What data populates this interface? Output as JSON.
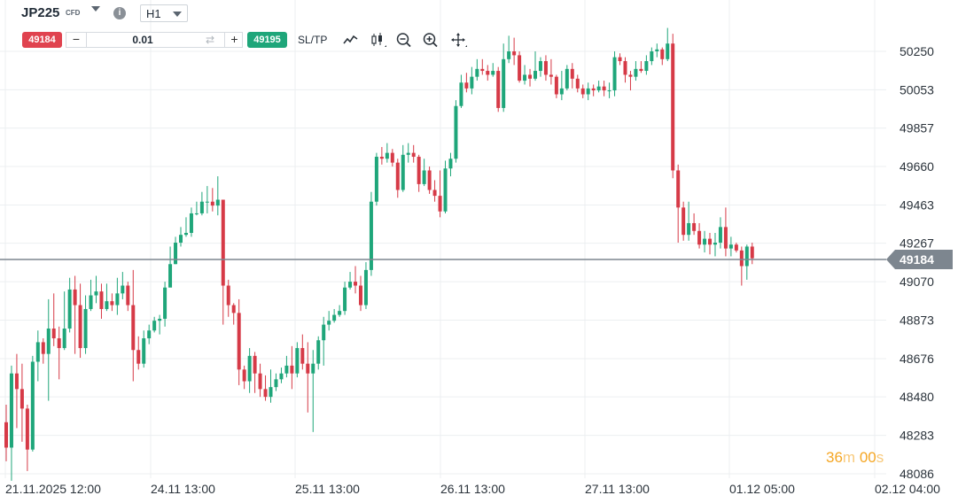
{
  "header": {
    "symbol": "JP225",
    "symbol_type": "CFD",
    "info_icon": "info-icon",
    "timeframe": "H1"
  },
  "trade_bar": {
    "sell_price": "49184",
    "lot_value": "0.01",
    "minus_label": "−",
    "plus_label": "+",
    "swap_icon": "swap-icon",
    "buy_price": "49195",
    "sltp_label": "SL/TP",
    "tools": [
      "line-chart-icon",
      "candlestick-icon",
      "zoom-out-icon",
      "zoom-in-icon",
      "move-icon"
    ]
  },
  "colors": {
    "up": "#1fa67a",
    "down": "#d63a47",
    "current_line": "#7d868f",
    "grid": "#eceff1"
  },
  "chart_data": {
    "type": "candlestick",
    "y_ticks": [
      50250,
      50053,
      49857,
      49660,
      49463,
      49267,
      49070,
      48873,
      48676,
      48480,
      48283,
      48086
    ],
    "x_ticks": [
      "21.11.2025 12:00",
      "24.11 13:00",
      "25.11 13:00",
      "26.11 13:00",
      "27.11 13:00",
      "01.12 05:00",
      "02.12 04:00"
    ],
    "current_price": "49184",
    "candles": [
      [
        48350,
        48220,
        48440,
        48150
      ],
      [
        48220,
        48600,
        48640,
        48050
      ],
      [
        48600,
        48520,
        48700,
        48320
      ],
      [
        48520,
        48420,
        48650,
        48250
      ],
      [
        48420,
        48210,
        48440,
        48100
      ],
      [
        48210,
        48660,
        48690,
        48200
      ],
      [
        48660,
        48760,
        48820,
        48560
      ],
      [
        48760,
        48700,
        48780,
        48650
      ],
      [
        48700,
        48830,
        48980,
        48460
      ],
      [
        48830,
        48780,
        49010,
        48740
      ],
      [
        48780,
        48730,
        48840,
        48570
      ],
      [
        48730,
        48830,
        49020,
        48720
      ],
      [
        48830,
        49030,
        49090,
        48810
      ],
      [
        49030,
        48950,
        49100,
        48700
      ],
      [
        48950,
        48730,
        49060,
        48680
      ],
      [
        48730,
        48930,
        49000,
        48700
      ],
      [
        48930,
        49000,
        49080,
        48920
      ],
      [
        49000,
        49020,
        49100,
        48960
      ],
      [
        49020,
        48930,
        49060,
        48880
      ],
      [
        48930,
        48970,
        49060,
        48920
      ],
      [
        48970,
        48950,
        49010,
        48920
      ],
      [
        48950,
        49010,
        49090,
        48900
      ],
      [
        49010,
        49050,
        49120,
        48980
      ],
      [
        49050,
        48950,
        49070,
        48920
      ],
      [
        48950,
        48720,
        49130,
        48560
      ],
      [
        48720,
        48650,
        48790,
        48620
      ],
      [
        48650,
        48780,
        48820,
        48630
      ],
      [
        48780,
        48820,
        48850,
        48750
      ],
      [
        48820,
        48870,
        48890,
        48810
      ],
      [
        48870,
        48880,
        48900,
        48800
      ],
      [
        48880,
        49040,
        49070,
        48840
      ],
      [
        49040,
        49160,
        49250,
        49140
      ],
      [
        49160,
        49270,
        49300,
        49160
      ],
      [
        49270,
        49310,
        49350,
        49250
      ],
      [
        49310,
        49320,
        49400,
        49300
      ],
      [
        49320,
        49420,
        49450,
        49300
      ],
      [
        49420,
        49420,
        49480,
        49410
      ],
      [
        49420,
        49480,
        49530,
        49410
      ],
      [
        49480,
        49480,
        49560,
        49420
      ],
      [
        49480,
        49460,
        49550,
        49430
      ],
      [
        49460,
        49490,
        49610,
        49410
      ],
      [
        49490,
        49050,
        49130,
        48850
      ],
      [
        49050,
        48950,
        49080,
        48890
      ],
      [
        48950,
        48910,
        48960,
        48850
      ],
      [
        48910,
        48620,
        48980,
        48540
      ],
      [
        48620,
        48560,
        48640,
        48520
      ],
      [
        48560,
        48690,
        48730,
        48500
      ],
      [
        48690,
        48600,
        48710,
        48500
      ],
      [
        48600,
        48520,
        48650,
        48480
      ],
      [
        48520,
        48480,
        48590,
        48460
      ],
      [
        48480,
        48530,
        48620,
        48450
      ],
      [
        48530,
        48570,
        48600,
        48510
      ],
      [
        48570,
        48600,
        48630,
        48550
      ],
      [
        48600,
        48640,
        48690,
        48580
      ],
      [
        48640,
        48600,
        48740,
        48520
      ],
      [
        48600,
        48730,
        48760,
        48580
      ],
      [
        48730,
        48650,
        48800,
        48620
      ],
      [
        48650,
        48600,
        48760,
        48400
      ],
      [
        48600,
        48650,
        48720,
        48300
      ],
      [
        48650,
        48770,
        48790,
        48620
      ],
      [
        48770,
        48850,
        48890,
        48640
      ],
      [
        48850,
        48870,
        48920,
        48820
      ],
      [
        48870,
        48900,
        48930,
        48860
      ],
      [
        48900,
        48920,
        48950,
        48890
      ],
      [
        48920,
        49040,
        49070,
        48900
      ],
      [
        49040,
        49070,
        49120,
        49030
      ],
      [
        49070,
        49050,
        49150,
        49010
      ],
      [
        49050,
        48950,
        49100,
        48920
      ],
      [
        48950,
        49130,
        49170,
        48930
      ],
      [
        49130,
        49480,
        49530,
        49100
      ],
      [
        49480,
        49710,
        49730,
        49460
      ],
      [
        49710,
        49700,
        49760,
        49670
      ],
      [
        49700,
        49730,
        49780,
        49680
      ],
      [
        49730,
        49680,
        49750,
        49660
      ],
      [
        49680,
        49540,
        49700,
        49500
      ],
      [
        49540,
        49720,
        49770,
        49530
      ],
      [
        49720,
        49730,
        49780,
        49680
      ],
      [
        49730,
        49710,
        49770,
        49680
      ],
      [
        49710,
        49570,
        49720,
        49530
      ],
      [
        49570,
        49640,
        49700,
        49560
      ],
      [
        49640,
        49540,
        49660,
        49520
      ],
      [
        49540,
        49510,
        49590,
        49480
      ],
      [
        49510,
        49430,
        49640,
        49400
      ],
      [
        49430,
        49650,
        49690,
        49420
      ],
      [
        49650,
        49700,
        49730,
        49610
      ],
      [
        49700,
        49970,
        50000,
        49680
      ],
      [
        49970,
        50090,
        50130,
        49960
      ],
      [
        50090,
        50060,
        50140,
        50040
      ],
      [
        50060,
        50120,
        50170,
        50030
      ],
      [
        50120,
        50160,
        50210,
        50100
      ],
      [
        50160,
        50150,
        50210,
        50130
      ],
      [
        50150,
        50130,
        50180,
        50100
      ],
      [
        50130,
        50150,
        50190,
        50120
      ],
      [
        50150,
        49960,
        50170,
        49940
      ],
      [
        49960,
        50210,
        50290,
        49940
      ],
      [
        50210,
        50250,
        50330,
        50190
      ],
      [
        50250,
        50230,
        50320,
        50180
      ],
      [
        50230,
        50100,
        50250,
        50090
      ],
      [
        50100,
        50130,
        50180,
        50080
      ],
      [
        50130,
        50110,
        50160,
        50070
      ],
      [
        50110,
        50150,
        50250,
        50100
      ],
      [
        50150,
        50200,
        50220,
        50120
      ],
      [
        50200,
        50130,
        50230,
        50100
      ],
      [
        50130,
        50120,
        50210,
        50080
      ],
      [
        50120,
        50030,
        50130,
        50010
      ],
      [
        50030,
        50060,
        50150,
        50000
      ],
      [
        50060,
        50160,
        50180,
        50050
      ],
      [
        50160,
        50110,
        50190,
        50060
      ],
      [
        50110,
        50060,
        50130,
        50040
      ],
      [
        50060,
        50030,
        50080,
        50010
      ],
      [
        50030,
        50060,
        50090,
        50000
      ],
      [
        50060,
        50050,
        50080,
        50020
      ],
      [
        50050,
        50070,
        50100,
        50040
      ],
      [
        50070,
        50050,
        50100,
        50020
      ],
      [
        50050,
        50050,
        50090,
        50010
      ],
      [
        50050,
        50220,
        50250,
        50020
      ],
      [
        50220,
        50200,
        50240,
        50180
      ],
      [
        50200,
        50130,
        50220,
        50090
      ],
      [
        50130,
        50120,
        50150,
        50050
      ],
      [
        50120,
        50160,
        50200,
        50100
      ],
      [
        50160,
        50150,
        50200,
        50140
      ],
      [
        50150,
        50200,
        50230,
        50130
      ],
      [
        50200,
        50250,
        50270,
        50180
      ],
      [
        50250,
        50260,
        50290,
        50220
      ],
      [
        50260,
        50210,
        50270,
        50180
      ],
      [
        50210,
        50290,
        50370,
        50200
      ],
      [
        50290,
        49640,
        50340,
        49600
      ],
      [
        49640,
        49450,
        49670,
        49270
      ],
      [
        49450,
        49310,
        49480,
        49280
      ],
      [
        49310,
        49370,
        49480,
        49280
      ],
      [
        49370,
        49330,
        49420,
        49310
      ],
      [
        49330,
        49260,
        49370,
        49240
      ],
      [
        49260,
        49290,
        49330,
        49220
      ],
      [
        49290,
        49260,
        49320,
        49210
      ],
      [
        49260,
        49270,
        49320,
        49200
      ],
      [
        49270,
        49350,
        49400,
        49240
      ],
      [
        49350,
        49240,
        49450,
        49200
      ],
      [
        49240,
        49260,
        49300,
        49200
      ],
      [
        49260,
        49230,
        49270,
        49220
      ],
      [
        49230,
        49150,
        49250,
        49050
      ],
      [
        49150,
        49250,
        49260,
        49080
      ],
      [
        49250,
        49190,
        49270,
        49160
      ]
    ]
  },
  "timer": {
    "minutes": "36",
    "m_unit": "m",
    "seconds": "00",
    "s_unit": "s"
  }
}
